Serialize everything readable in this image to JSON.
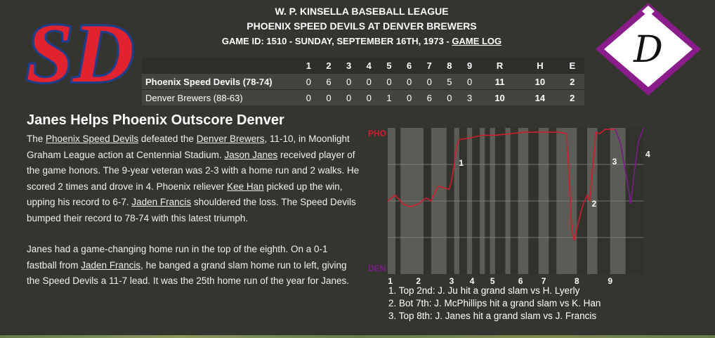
{
  "header": {
    "league": "W. P. KINSELLA BASEBALL LEAGUE",
    "matchup": "PHOENIX SPEED DEVILS AT DENVER BREWERS",
    "gameline": "GAME ID: 1510 - SUNDAY, SEPTEMBER 16TH, 1973 - ",
    "gamelog": "GAME LOG"
  },
  "logos": {
    "away": {
      "text": "SD",
      "fill": "#e0232e",
      "outline": "#1d3e8c"
    },
    "home": {
      "text": "D",
      "diamond": "#8a1c8c"
    }
  },
  "linescore": {
    "columns": [
      "1",
      "2",
      "3",
      "4",
      "5",
      "6",
      "7",
      "8",
      "9",
      "R",
      "H",
      "E"
    ],
    "rows": [
      {
        "team": "Phoenix Speed Devils (78-74)",
        "innings": [
          "0",
          "6",
          "0",
          "0",
          "0",
          "0",
          "0",
          "5",
          "0"
        ],
        "r": "11",
        "h": "10",
        "e": "2"
      },
      {
        "team": "Denver Brewers (88-63)",
        "innings": [
          "0",
          "0",
          "0",
          "0",
          "1",
          "0",
          "6",
          "0",
          "3"
        ],
        "r": "10",
        "h": "14",
        "e": "2"
      }
    ]
  },
  "story": {
    "headline": "Janes Helps Phoenix Outscore Denver",
    "p1": [
      {
        "t": "The "
      },
      {
        "t": "Phoenix Speed Devils",
        "link": true
      },
      {
        "t": " defeated the "
      },
      {
        "t": "Denver Brewers",
        "link": true
      },
      {
        "t": ", 11-10, in Moonlight Graham League action at Centennial Stadium. "
      },
      {
        "t": "Jason Janes",
        "link": true
      },
      {
        "t": " received player of the game honors. The 9-year veteran was 2-3 with a home run and 2 walks. He scored 2 times and drove in 4. Phoenix reliever "
      },
      {
        "t": "Kee Han",
        "link": true
      },
      {
        "t": " picked up the win, upping his record to 6-7. "
      },
      {
        "t": "Jaden Francis",
        "link": true
      },
      {
        "t": " shouldered the loss. The Speed Devils bumped their record to 78-74 with this latest triumph."
      }
    ],
    "p2": [
      {
        "t": "Janes had a game-changing home run in the top of the eighth. On a 0-1 fastball from "
      },
      {
        "t": "Jaden Francis",
        "link": true
      },
      {
        "t": ", he banged a grand slam home run to left, giving the Speed Devils a 11-7 lead. It was the 25th home run of the year for Janes."
      }
    ]
  },
  "chart_data": {
    "type": "line",
    "top_label": "PHO",
    "bottom_label": "DEN",
    "top_color": "#cc1f2b",
    "bottom_color": "#7b1a8a",
    "innings": [
      "1",
      "2",
      "3",
      "4",
      "5",
      "6",
      "7",
      "8",
      "9"
    ],
    "series": [
      {
        "values": [
          [
            0.0,
            0.5
          ],
          [
            0.03,
            0.46
          ],
          [
            0.06,
            0.52
          ],
          [
            0.09,
            0.54
          ],
          [
            0.12,
            0.52
          ],
          [
            0.15,
            0.48
          ],
          [
            0.17,
            0.5
          ],
          [
            0.19,
            0.42
          ],
          [
            0.2,
            0.4
          ],
          [
            0.22,
            0.41
          ],
          [
            0.24,
            0.42
          ],
          [
            0.25,
            0.36
          ],
          [
            0.26,
            0.25
          ],
          [
            0.27,
            0.12
          ],
          [
            0.28,
            0.08
          ],
          [
            0.32,
            0.07
          ],
          [
            0.37,
            0.05
          ],
          [
            0.42,
            0.05
          ],
          [
            0.48,
            0.04
          ],
          [
            0.53,
            0.03
          ],
          [
            0.58,
            0.03
          ],
          [
            0.64,
            0.03
          ],
          [
            0.67,
            0.03
          ],
          [
            0.7,
            0.04
          ],
          [
            0.71,
            0.35
          ],
          [
            0.72,
            0.7
          ],
          [
            0.73,
            0.77
          ],
          [
            0.745,
            0.65
          ],
          [
            0.76,
            0.55
          ],
          [
            0.77,
            0.5
          ],
          [
            0.78,
            0.46
          ],
          [
            0.79,
            0.5
          ],
          [
            0.8,
            0.3
          ],
          [
            0.815,
            0.03
          ],
          [
            0.83,
            0.04
          ],
          [
            0.85,
            0.01
          ],
          [
            0.89,
            0.01
          ],
          [
            0.91,
            0.1
          ],
          [
            0.925,
            0.25
          ],
          [
            0.94,
            0.4
          ],
          [
            0.95,
            0.52
          ],
          [
            0.965,
            0.3
          ],
          [
            0.98,
            0.1
          ],
          [
            1.0,
            0.0
          ]
        ]
      }
    ],
    "markers": [
      {
        "label": "1",
        "x": 0.27,
        "y": 0.24
      },
      {
        "label": "2",
        "x": 0.79,
        "y": 0.52
      },
      {
        "label": "3",
        "x": 0.87,
        "y": 0.23
      },
      {
        "label": "4",
        "x": 1.0,
        "y": 0.18
      }
    ],
    "inning_bands": [
      [
        0.0,
        0.03
      ],
      [
        0.05,
        0.14
      ],
      [
        0.17,
        0.23
      ],
      [
        0.26,
        0.28
      ],
      [
        0.31,
        0.33
      ],
      [
        0.36,
        0.38
      ],
      [
        0.4,
        0.42
      ],
      [
        0.46,
        0.48
      ],
      [
        0.51,
        0.55
      ],
      [
        0.59,
        0.63
      ],
      [
        0.66,
        0.74
      ],
      [
        0.78,
        0.82
      ],
      [
        0.87,
        0.93
      ]
    ],
    "inning_ticks": [
      0.01,
      0.12,
      0.25,
      0.33,
      0.41,
      0.52,
      0.61,
      0.74,
      0.87
    ]
  },
  "events": [
    "1. Top 2nd: J. Ju hit a grand slam vs H. Lyerly",
    "2. Bot 7th: J. McPhillips hit a grand slam vs K. Han",
    "3. Top 8th: J. Janes hit a grand slam vs J. Francis"
  ]
}
